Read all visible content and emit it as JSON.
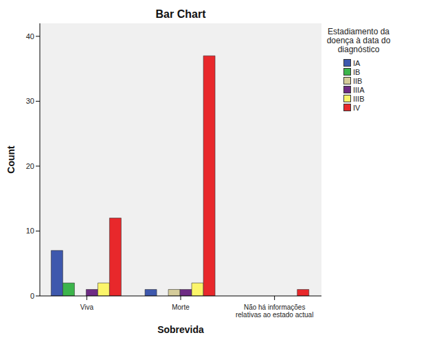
{
  "chart_data": {
    "type": "bar",
    "title": "Bar Chart",
    "x_label": "Sobrevida",
    "y_label": "Count",
    "legend_title": "Estadiamento da doença à data do diagnóstico",
    "categories": [
      "Viva",
      "Morte",
      "Não há informações relativas ao estado actual"
    ],
    "series": [
      {
        "name": "IA",
        "color": "#3e58ad",
        "values": [
          7,
          1,
          0
        ]
      },
      {
        "name": "IB",
        "color": "#3cb44b",
        "values": [
          2,
          0,
          0
        ]
      },
      {
        "name": "IIB",
        "color": "#d5cc9a",
        "values": [
          0,
          1,
          0
        ]
      },
      {
        "name": "IIIA",
        "color": "#6e2b84",
        "values": [
          1,
          1,
          0
        ]
      },
      {
        "name": "IIIB",
        "color": "#fbf56a",
        "values": [
          2,
          2,
          0
        ]
      },
      {
        "name": "IV",
        "color": "#e8282b",
        "values": [
          12,
          37,
          1
        ]
      }
    ],
    "ylim": [
      0,
      42
    ],
    "yticks": [
      0,
      10,
      20,
      30,
      40
    ],
    "grid": false,
    "legend": "right"
  }
}
